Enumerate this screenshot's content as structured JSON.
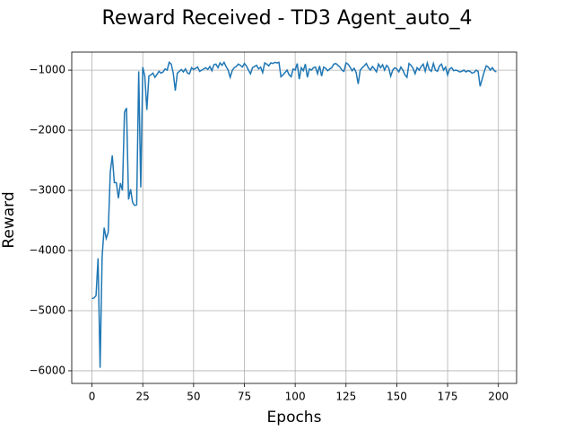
{
  "chart_data": {
    "type": "line",
    "title": "Reward Received - TD3 Agent_auto_4",
    "x_label": "Epochs",
    "y_label": "Reward",
    "x": [
      0,
      1,
      2,
      3,
      4,
      5,
      6,
      7,
      8,
      9,
      10,
      11,
      12,
      13,
      14,
      15,
      16,
      17,
      18,
      19,
      20,
      21,
      22,
      23,
      24,
      25,
      26,
      27,
      28,
      29,
      30,
      31,
      32,
      33,
      34,
      35,
      36,
      37,
      38,
      39,
      40,
      41,
      42,
      43,
      44,
      45,
      46,
      47,
      48,
      49,
      50,
      51,
      52,
      53,
      54,
      55,
      56,
      57,
      58,
      59,
      60,
      61,
      62,
      63,
      64,
      65,
      66,
      67,
      68,
      69,
      70,
      71,
      72,
      73,
      74,
      75,
      76,
      77,
      78,
      79,
      80,
      81,
      82,
      83,
      84,
      85,
      86,
      87,
      88,
      89,
      90,
      91,
      92,
      93,
      94,
      95,
      96,
      97,
      98,
      99,
      100,
      101,
      102,
      103,
      104,
      105,
      106,
      107,
      108,
      109,
      110,
      111,
      112,
      113,
      114,
      115,
      116,
      117,
      118,
      119,
      120,
      121,
      122,
      123,
      124,
      125,
      126,
      127,
      128,
      129,
      130,
      131,
      132,
      133,
      134,
      135,
      136,
      137,
      138,
      139,
      140,
      141,
      142,
      143,
      144,
      145,
      146,
      147,
      148,
      149,
      150,
      151,
      152,
      153,
      154,
      155,
      156,
      157,
      158,
      159,
      160,
      161,
      162,
      163,
      164,
      165,
      166,
      167,
      168,
      169,
      170,
      171,
      172,
      173,
      174,
      175,
      176,
      177,
      178,
      179,
      180,
      181,
      182,
      183,
      184,
      185,
      186,
      187,
      188,
      189,
      190,
      191,
      192,
      193,
      194,
      195,
      196,
      197,
      198,
      199
    ],
    "series": [
      {
        "name": "Reward",
        "color": "#1f77b4",
        "values": [
          -4800,
          -4790,
          -4750,
          -4130,
          -5950,
          -4100,
          -3620,
          -3800,
          -3700,
          -2700,
          -2420,
          -2870,
          -2870,
          -3130,
          -2880,
          -3000,
          -1700,
          -1630,
          -3150,
          -2980,
          -3200,
          -3250,
          -3240,
          -1020,
          -2950,
          -950,
          -1100,
          -1660,
          -1100,
          -1080,
          -1050,
          -1120,
          -1070,
          -1020,
          -1050,
          -1030,
          -980,
          -1000,
          -870,
          -900,
          -1050,
          -1340,
          -1050,
          -1020,
          -990,
          -1030,
          -980,
          -1050,
          -1060,
          -960,
          -990,
          -970,
          -950,
          -1020,
          -1000,
          -980,
          -960,
          -990,
          -940,
          -1010,
          -910,
          -900,
          -960,
          -880,
          -920,
          -870,
          -940,
          -1000,
          -1120,
          -1010,
          -960,
          -940,
          -900,
          -920,
          -950,
          -890,
          -930,
          -1000,
          -1060,
          -960,
          -940,
          -920,
          -980,
          -950,
          -1040,
          -880,
          -900,
          -930,
          -880,
          -890,
          -870,
          -880,
          -870,
          -1110,
          -1080,
          -1040,
          -1000,
          -1080,
          -1110,
          -980,
          -1000,
          -890,
          -1150,
          -960,
          -1010,
          -900,
          -1120,
          -980,
          -1000,
          -960,
          -950,
          -1060,
          -930,
          -1100,
          -950,
          -970,
          -1010,
          -980,
          -960,
          -900,
          -890,
          -920,
          -950,
          -1000,
          -1020,
          -880,
          -900,
          -950,
          -1010,
          -970,
          -1040,
          -1230,
          -1000,
          -960,
          -930,
          -890,
          -960,
          -1000,
          -940,
          -980,
          -1030,
          -900,
          -960,
          -910,
          -1000,
          -920,
          -960,
          -1100,
          -1000,
          -960,
          -980,
          -1030,
          -950,
          -1000,
          -1080,
          -1120,
          -890,
          -920,
          -970,
          -1060,
          -960,
          -1000,
          -940,
          -900,
          -1020,
          -880,
          -990,
          -1020,
          -890,
          -1000,
          -1020,
          -930,
          -900,
          -1000,
          -950,
          -1080,
          -980,
          -960,
          -1010,
          -1000,
          -1010,
          -1030,
          -1020,
          -1000,
          -1030,
          -1010,
          -1020,
          -1050,
          -1040,
          -1000,
          -1020,
          -1270,
          -1150,
          -1030,
          -930,
          -950,
          -1000,
          -960,
          -1010,
          -1030
        ]
      }
    ],
    "xlim": [
      -9.95,
      208.95
    ],
    "ylim": [
      -6210,
      -700
    ],
    "xticks": [
      0,
      25,
      50,
      75,
      100,
      125,
      150,
      175,
      200
    ],
    "yticks": [
      {
        "value": -6000,
        "label": "−6000"
      },
      {
        "value": -5000,
        "label": "−5000"
      },
      {
        "value": -4000,
        "label": "−4000"
      },
      {
        "value": -3000,
        "label": "−3000"
      },
      {
        "value": -2000,
        "label": "−2000"
      },
      {
        "value": -1000,
        "label": "−1000"
      }
    ],
    "grid": true
  }
}
